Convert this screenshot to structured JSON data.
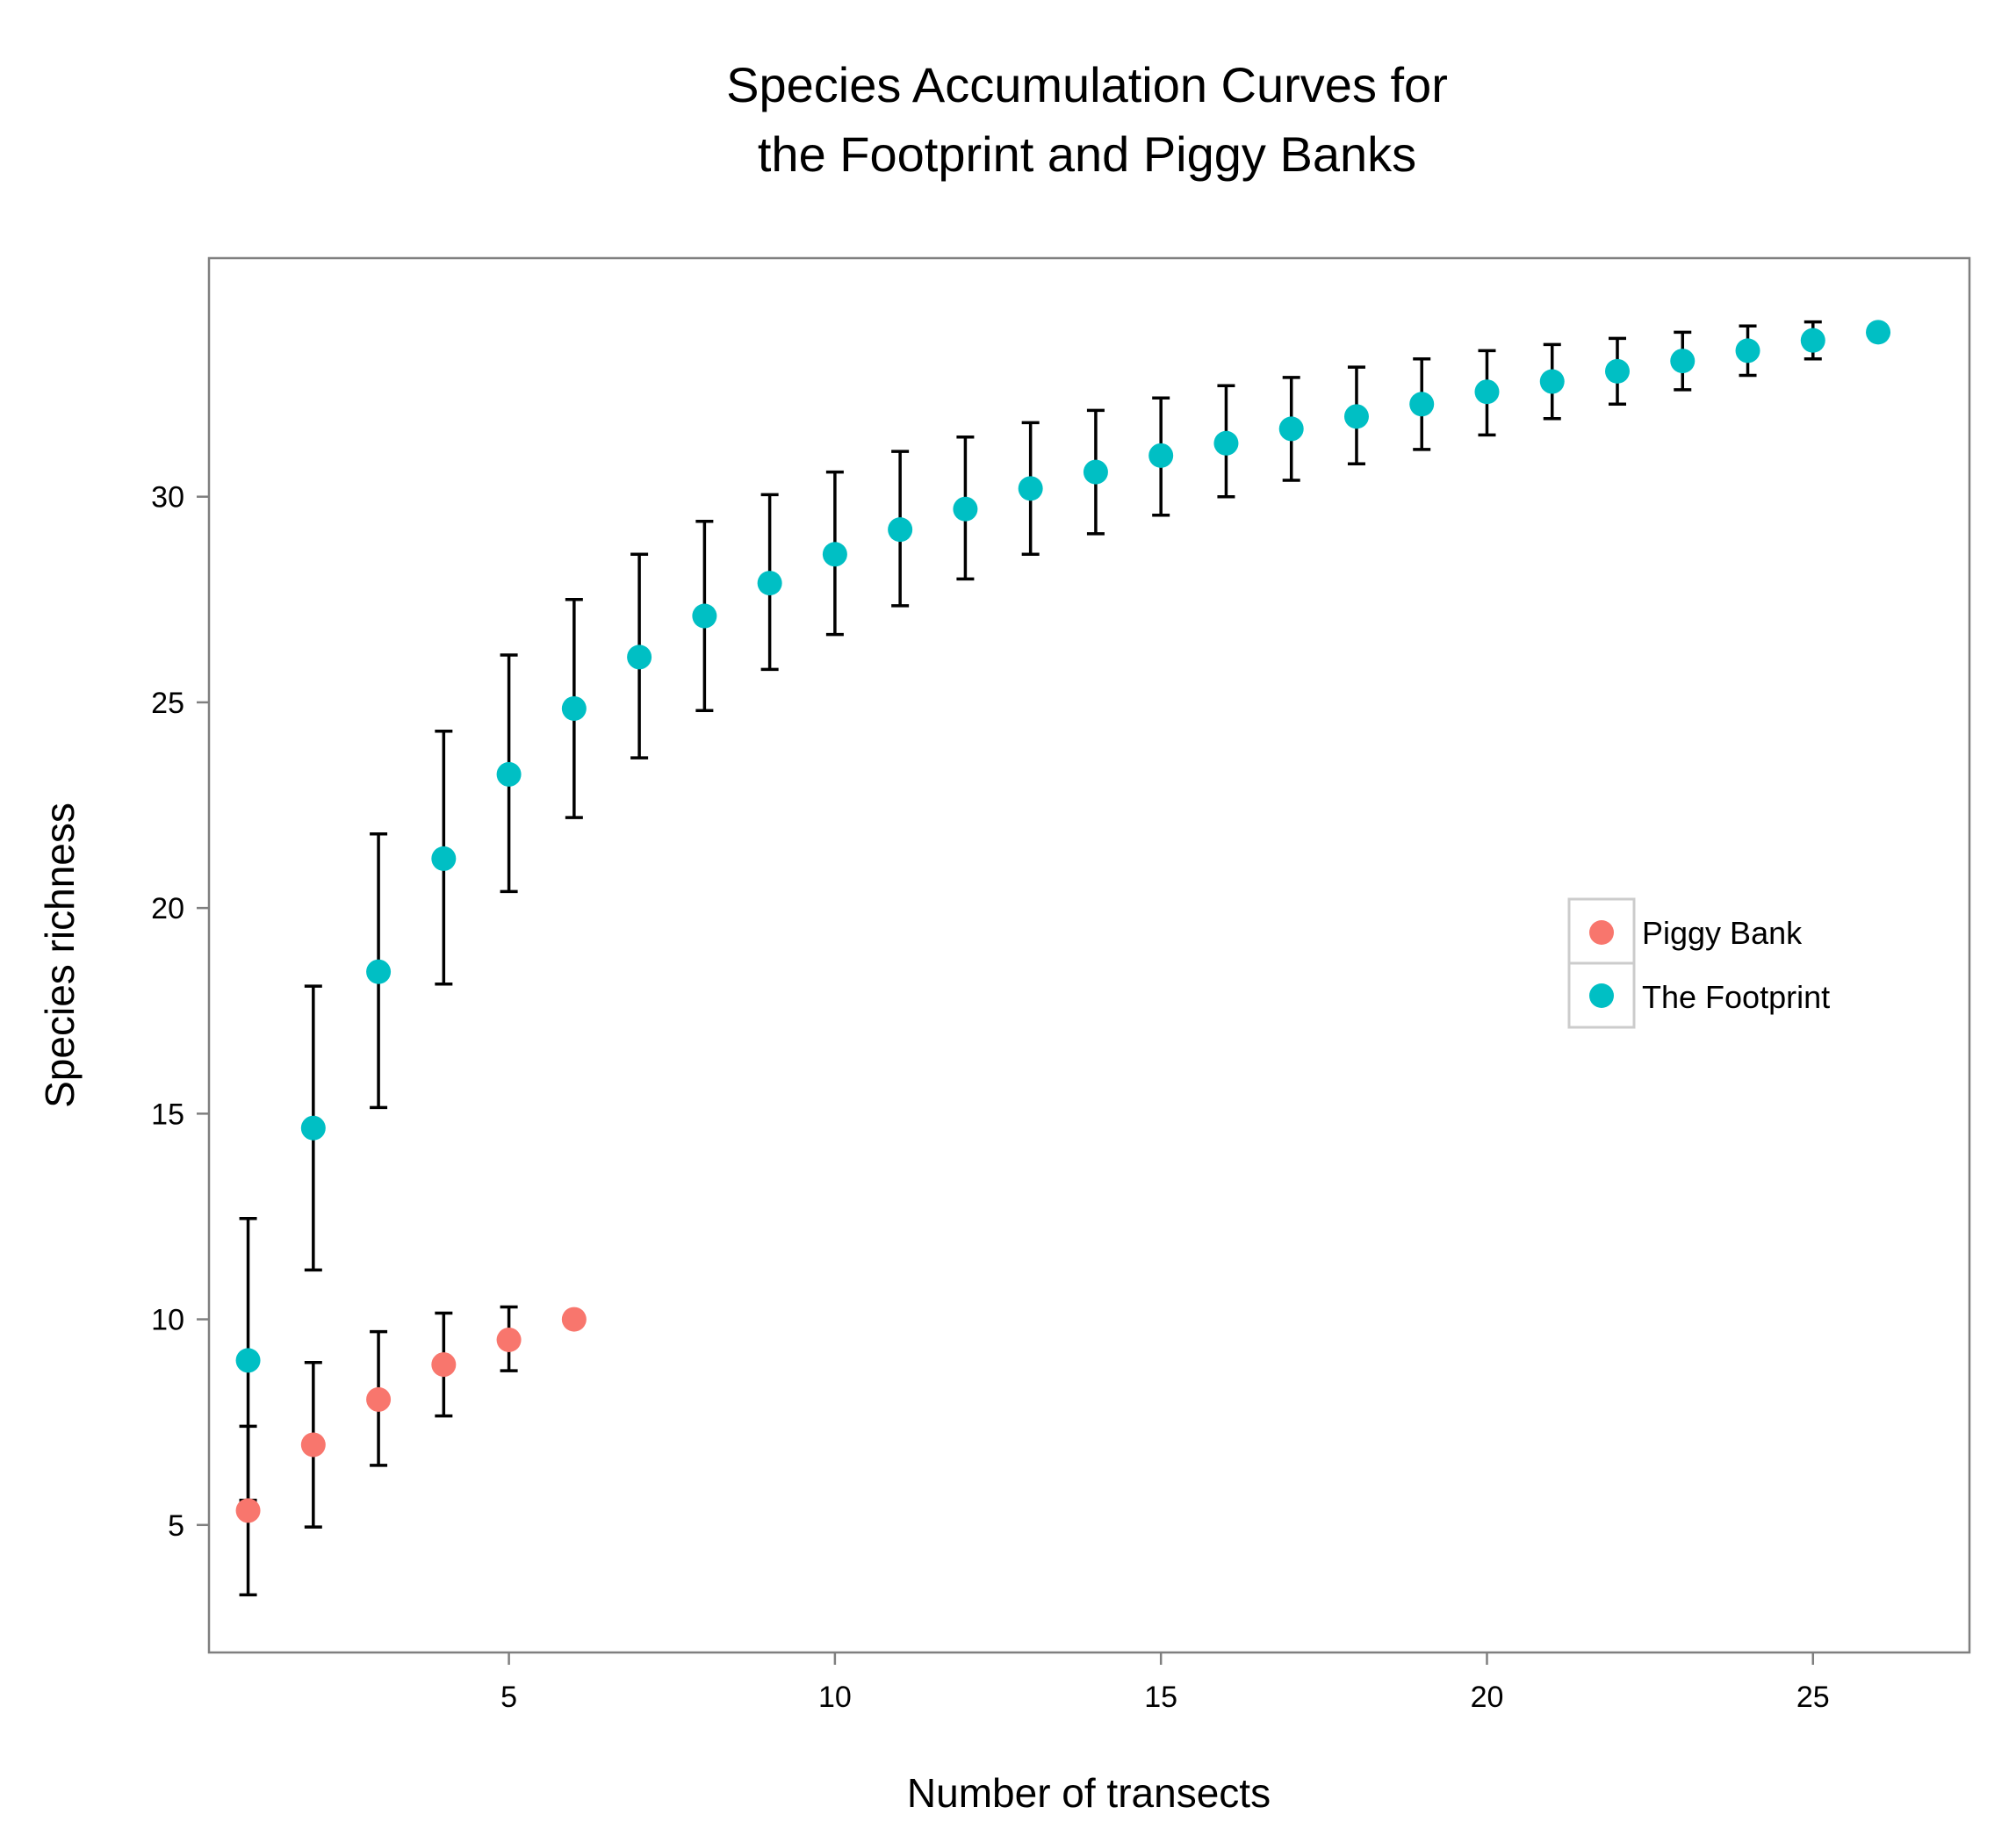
{
  "chart_data": {
    "type": "scatter",
    "title": "Species Accumulation Curves for\n the Footprint and Piggy Banks",
    "xlabel": "Number of transects",
    "ylabel": "Species richness",
    "xlim": [
      0.4,
      27.4
    ],
    "ylim": [
      1.9,
      35.8
    ],
    "xticks": [
      5,
      10,
      15,
      20,
      25
    ],
    "yticks": [
      5,
      10,
      15,
      20,
      25,
      30
    ],
    "grid": false,
    "legend_position": "right",
    "series": [
      {
        "name": "Piggy Bank",
        "color": "#F8766D",
        "x": [
          1,
          2,
          3,
          4,
          5,
          6
        ],
        "y": [
          5.35,
          6.95,
          8.05,
          8.9,
          9.5,
          10.0
        ],
        "lower": [
          3.3,
          4.95,
          6.45,
          7.65,
          8.75,
          10.0
        ],
        "upper": [
          7.4,
          8.95,
          9.7,
          10.15,
          10.3,
          10.0
        ]
      },
      {
        "name": "The Footprint",
        "color": "#00BFC4",
        "x": [
          1,
          2,
          3,
          4,
          5,
          6,
          7,
          8,
          9,
          10,
          11,
          12,
          13,
          14,
          15,
          16,
          17,
          18,
          19,
          20,
          21,
          22,
          23,
          24,
          25,
          26
        ],
        "y": [
          9.0,
          14.65,
          18.45,
          21.2,
          23.25,
          24.85,
          26.1,
          27.1,
          27.9,
          28.6,
          29.2,
          29.7,
          30.2,
          30.6,
          31.0,
          31.3,
          31.65,
          31.95,
          32.25,
          32.55,
          32.8,
          33.05,
          33.3,
          33.55,
          33.8,
          34.0
        ],
        "lower": [
          5.6,
          11.2,
          15.15,
          18.15,
          20.4,
          22.2,
          23.65,
          24.8,
          25.8,
          26.65,
          27.35,
          28.0,
          28.6,
          29.1,
          29.55,
          30.0,
          30.4,
          30.8,
          31.15,
          31.5,
          31.9,
          32.25,
          32.6,
          32.95,
          33.35,
          34.0
        ],
        "upper": [
          12.45,
          18.1,
          21.8,
          24.3,
          26.15,
          27.5,
          28.6,
          29.4,
          30.05,
          30.6,
          31.1,
          31.45,
          31.8,
          32.1,
          32.4,
          32.7,
          32.9,
          33.15,
          33.35,
          33.55,
          33.7,
          33.85,
          34.0,
          34.15,
          34.25,
          34.0
        ]
      }
    ]
  }
}
